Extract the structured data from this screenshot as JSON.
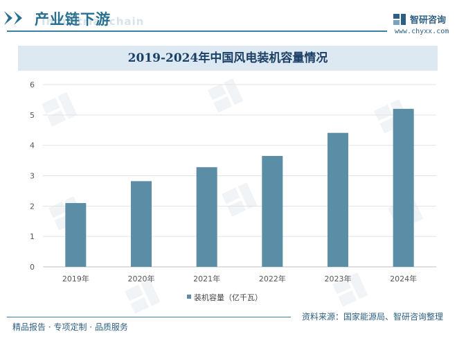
{
  "header": {
    "title": "产业链下游",
    "subtitle": "Industrial chain"
  },
  "brand": {
    "name": "智研咨询",
    "url": "www.chyxx.com"
  },
  "chart_data": {
    "type": "bar",
    "title": "2019-2024年中国风电装机容量情况",
    "categories": [
      "2019年",
      "2020年",
      "2021年",
      "2022年",
      "2023年",
      "2024年"
    ],
    "series": [
      {
        "name": "装机容量（亿千瓦）",
        "values": [
          2.1,
          2.82,
          3.28,
          3.65,
          4.41,
          5.2
        ],
        "color": "#5b8ea6"
      }
    ],
    "yticks": [
      "0",
      "1",
      "2",
      "3",
      "4",
      "5",
      "6"
    ],
    "ylim": [
      0,
      6
    ],
    "grid": true,
    "legend_position": "bottom"
  },
  "footer": {
    "left": "精品报告 · 专项定制 · 品质服务",
    "source": "资料来源：国家能源局、智研咨询整理"
  }
}
